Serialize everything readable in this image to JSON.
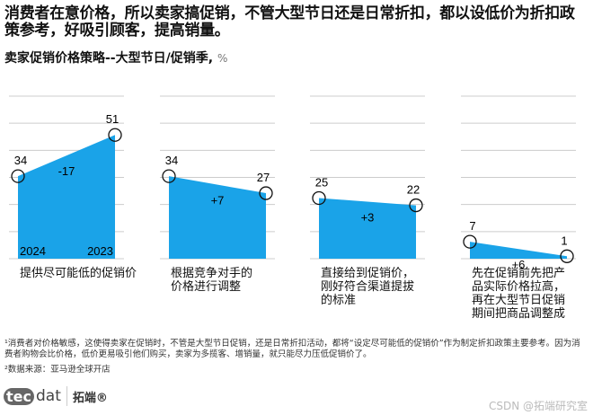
{
  "title": "消费者在意价格，所以卖家搞促销，不管大型节日还是日常折扣，都以设低价为折扣政策参考，好吸引顾客，提高销量。",
  "subtitle": "卖家促销价格策略--大型节日/促销季,",
  "unit": "%",
  "chart_data": {
    "type": "area",
    "title": "卖家促销价格策略--大型节日/促销季, %",
    "categories": [
      "提供尽可能低的促销价",
      "根据竞争对手的价格进行调整",
      "直接给到促销价，刚好符合渠道提拔的标准",
      "先在促销前先把产品实际价格拉高，再在大型节日促销期间把商品调整成"
    ],
    "series": [
      {
        "name": "2024",
        "values": [
          34,
          34,
          25,
          7
        ]
      },
      {
        "name": "2023",
        "values": [
          51,
          27,
          22,
          1
        ]
      }
    ],
    "differences": [
      "-17",
      "+7",
      "+3",
      "+6"
    ],
    "ylim": [
      0,
      67
    ],
    "grid": true,
    "color": "#1aa3e8"
  },
  "footnotes": [
    "¹消费者对价格敏感，这使得卖家在促销时，不管是大型节日促销，还是日常折扣活动，都将“设定尽可能低的促销价”作为制定折扣政策主要参考。因为消费者购物会比价格，低价更易吸引他们购买，卖家为多揽客、增销量，就只能尽力压低促销价了。",
    "²数据来源：亚马逊全球开店"
  ],
  "logo": {
    "mark": "tec",
    "dat": "dat",
    "cn": "拓端®"
  },
  "watermark": "CSDN @拓端研究室"
}
